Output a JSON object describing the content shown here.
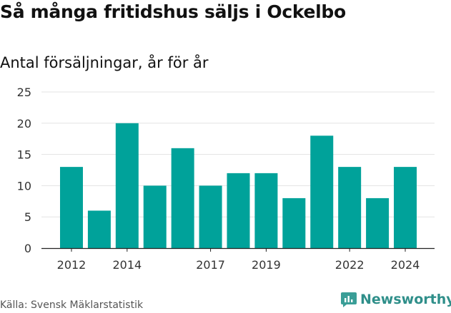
{
  "title": "Så många fritidshus säljs i Ockelbo",
  "subtitle": "Antal försäljningar, år för år",
  "source": "Källa: Svensk Mäklarstatistik",
  "brand": {
    "name": "Newsworthy",
    "icon": "newsworthy-logo-icon"
  },
  "colors": {
    "bar": "#00a29a",
    "grid": "#e3e3e3",
    "text": "#111111",
    "tick": "#333333",
    "brand": "#2f8f8a"
  },
  "chart_data": {
    "type": "bar",
    "title": "Så många fritidshus säljs i Ockelbo",
    "subtitle": "Antal försäljningar, år för år",
    "categories": [
      "2012",
      "2013",
      "2014",
      "2015",
      "2016",
      "2017",
      "2018",
      "2019",
      "2020",
      "2021",
      "2022",
      "2023",
      "2024"
    ],
    "values": [
      13,
      6,
      20,
      10,
      16,
      10,
      12,
      12,
      8,
      18,
      13,
      8,
      13
    ],
    "x_tick_labels": [
      "2012",
      "2014",
      "2017",
      "2019",
      "2022",
      "2024"
    ],
    "y_tick_labels": [
      "0",
      "5",
      "10",
      "15",
      "20",
      "25"
    ],
    "ylim": [
      0,
      25
    ],
    "xlabel": "",
    "ylabel": "",
    "grid": true,
    "legend": "none"
  }
}
